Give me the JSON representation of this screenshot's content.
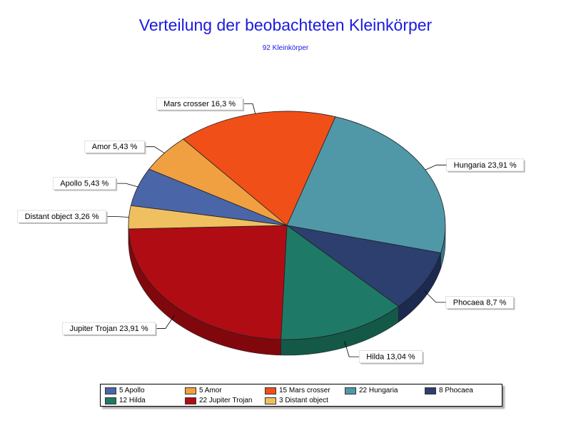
{
  "chart_data": {
    "type": "pie",
    "title": "Verteilung der beobachteten Kleinkörper",
    "subtitle": "92 Kleinkörper",
    "slices": [
      {
        "name": "Apollo",
        "value": 5,
        "label": "Apollo 5,43 %",
        "legend": "5 Apollo",
        "color": "#4a66a8",
        "side": "#2e4580"
      },
      {
        "name": "Amor",
        "value": 5,
        "label": "Amor 5,43 %",
        "legend": "5 Amor",
        "color": "#f0a040",
        "side": "#c87a1c"
      },
      {
        "name": "Mars crosser",
        "value": 15,
        "label": "Mars crosser 16,3 %",
        "legend": "15 Mars crosser",
        "color": "#f05018",
        "side": "#c83808"
      },
      {
        "name": "Hungaria",
        "value": 22,
        "label": "Hungaria 23,91 %",
        "legend": "22 Hungaria",
        "color": "#5098a8",
        "side": "#367886"
      },
      {
        "name": "Phocaea",
        "value": 8,
        "label": "Phocaea 8,7 %",
        "legend": "8 Phocaea",
        "color": "#2c3f6e",
        "side": "#1c2a50"
      },
      {
        "name": "Hilda",
        "value": 12,
        "label": "Hilda 13,04 %",
        "legend": "12 Hilda",
        "color": "#1e7a66",
        "side": "#145848"
      },
      {
        "name": "Jupiter Trojan",
        "value": 22,
        "label": "Jupiter Trojan 23,91 %",
        "legend": "22 Jupiter Trojan",
        "color": "#b00c14",
        "side": "#80080c"
      },
      {
        "name": "Distant object",
        "value": 3,
        "label": "Distant object 3,26 %",
        "legend": "3 Distant object",
        "color": "#f0c060",
        "side": "#c89838"
      }
    ],
    "legend_position": "bottom"
  }
}
